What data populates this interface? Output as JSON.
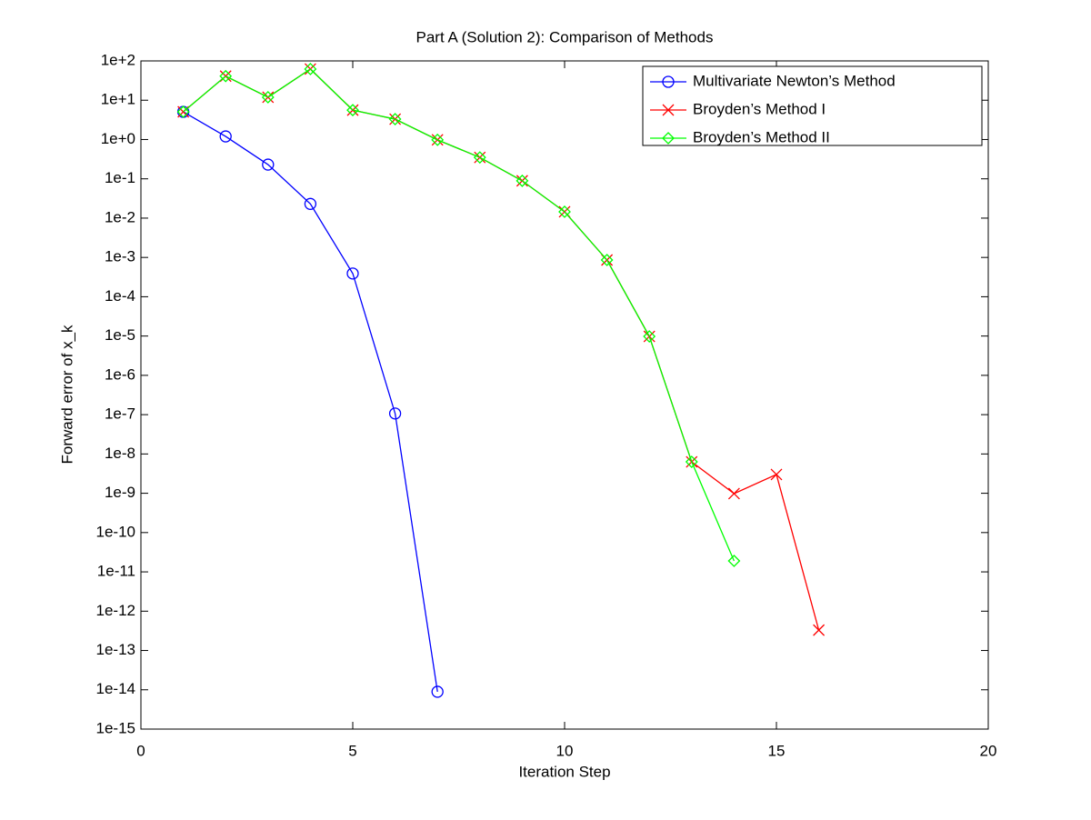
{
  "chart_data": {
    "type": "line",
    "title": "Part A (Solution 2): Comparison of Methods",
    "x_label": "Iteration Step",
    "y_label": "Forward error of x_k",
    "xlim": [
      0,
      20
    ],
    "xticks": [
      0,
      5,
      10,
      15,
      20
    ],
    "ylim": [
      1e-15,
      100
    ],
    "y_scale": "log",
    "yticks": [
      {
        "value": 100,
        "label": "1e+2"
      },
      {
        "value": 10,
        "label": "1e+1"
      },
      {
        "value": 1,
        "label": "1e+0"
      },
      {
        "value": 0.1,
        "label": "1e-1"
      },
      {
        "value": 0.01,
        "label": "1e-2"
      },
      {
        "value": 0.001,
        "label": "1e-3"
      },
      {
        "value": 0.0001,
        "label": "1e-4"
      },
      {
        "value": 1e-05,
        "label": "1e-5"
      },
      {
        "value": 1e-06,
        "label": "1e-6"
      },
      {
        "value": 1e-07,
        "label": "1e-7"
      },
      {
        "value": 1e-08,
        "label": "1e-8"
      },
      {
        "value": 1e-09,
        "label": "1e-9"
      },
      {
        "value": 1e-10,
        "label": "1e-10"
      },
      {
        "value": 1e-11,
        "label": "1e-11"
      },
      {
        "value": 1e-12,
        "label": "1e-12"
      },
      {
        "value": 1e-13,
        "label": "1e-13"
      },
      {
        "value": 1e-14,
        "label": "1e-14"
      },
      {
        "value": 1e-15,
        "label": "1e-15"
      }
    ],
    "legend": "upper right",
    "series": [
      {
        "name": "Multivariate Newton’s Method",
        "color": "#0000ff",
        "marker": "circle",
        "x": [
          1,
          2,
          3,
          4,
          5,
          6,
          7
        ],
        "values": [
          5.07,
          1.2,
          0.23,
          0.023,
          0.00039,
          1.07e-07,
          8.9e-15
        ]
      },
      {
        "name": "Broyden’s Method I",
        "color": "#ff0000",
        "marker": "cross",
        "x": [
          1,
          2,
          3,
          4,
          5,
          6,
          7,
          8,
          9,
          10,
          11,
          12,
          13,
          14,
          15,
          16
        ],
        "values": [
          5.07,
          41,
          11.9,
          62,
          5.6,
          3.3,
          0.98,
          0.35,
          0.089,
          0.0145,
          0.00086,
          9.8e-06,
          6.3e-09,
          9.8e-10,
          3e-09,
          3.3e-13
        ]
      },
      {
        "name": "Broyden’s Method II",
        "color": "#00ff00",
        "marker": "diamond",
        "x": [
          1,
          2,
          3,
          4,
          5,
          6,
          7,
          8,
          9,
          10,
          11,
          12,
          13,
          14
        ],
        "values": [
          5.07,
          41,
          11.9,
          62,
          5.6,
          3.3,
          0.98,
          0.35,
          0.089,
          0.0145,
          0.00086,
          9.8e-06,
          6.3e-09,
          1.9e-11
        ]
      }
    ]
  }
}
